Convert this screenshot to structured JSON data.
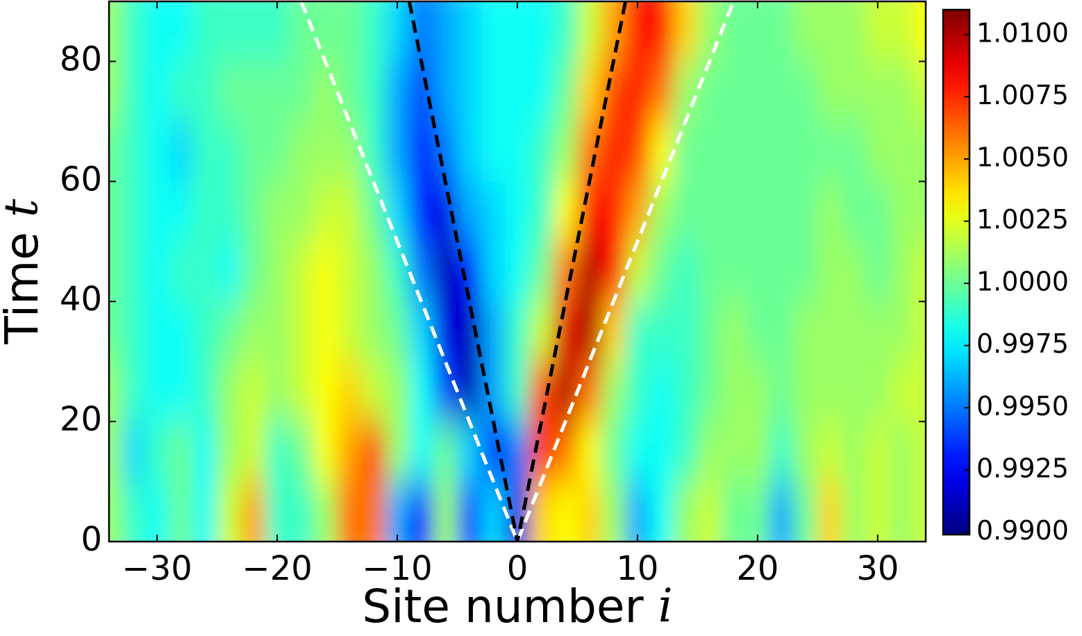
{
  "chart_data": {
    "type": "heatmap",
    "xlabel": {
      "text": "Site number",
      "symbol": "i"
    },
    "ylabel": {
      "text": "Time",
      "symbol": "t"
    },
    "colormap": "jet",
    "x": [
      -34,
      -32,
      -30,
      -28,
      -26,
      -24,
      -22,
      -20,
      -18,
      -16,
      -14,
      -12,
      -10,
      -8,
      -6,
      -4,
      -2,
      0,
      2,
      4,
      6,
      8,
      10,
      12,
      14,
      16,
      18,
      20,
      22,
      24,
      26,
      28,
      30,
      32,
      34
    ],
    "y": [
      5,
      15,
      25,
      35,
      45,
      55,
      65,
      75,
      85
    ],
    "values": [
      [
        1.001,
        0.999,
        0.998,
        1.0,
        0.998,
        1.002,
        1.005,
        0.999,
        0.999,
        1.001,
        1.006,
        1.006,
        0.996,
        0.993,
        1.001,
        0.994,
        0.997,
        0.992,
        1.004,
        1.003,
        1.004,
        1.001,
        0.996,
        0.998,
        1.001,
        1.002,
        1.0,
        1.0,
        0.996,
        1.0,
        1.004,
        1.001,
        1.002,
        1.001,
        1.002
      ],
      [
        1.001,
        0.997,
        0.999,
        1.0,
        0.998,
        1.001,
        1.002,
        0.999,
        1.0,
        1.003,
        1.005,
        1.007,
        1.001,
        0.998,
        1.0,
        0.997,
        0.993,
        0.995,
        1.008,
        1.006,
        1.003,
        1.0,
        0.998,
        0.998,
        0.999,
        1.001,
        1.001,
        1.001,
        0.999,
        1.001,
        1.002,
        1.001,
        1.002,
        1.001,
        1.002
      ],
      [
        1.001,
        0.999,
        0.998,
        0.998,
        0.999,
        1.001,
        1.002,
        1.001,
        1.002,
        1.003,
        1.004,
        1.002,
        1.001,
        0.998,
        0.994,
        0.991,
        0.996,
        0.999,
        1.007,
        1.01,
        1.006,
        1.001,
        0.999,
        0.998,
        0.999,
        1.0,
        1.001,
        1.001,
        1.0,
        1.001,
        1.001,
        1.001,
        1.001,
        1.002,
        1.002
      ],
      [
        1.0,
        0.999,
        0.998,
        0.998,
        0.999,
        1.0,
        1.001,
        1.001,
        1.002,
        1.003,
        1.002,
        1.001,
        1.0,
        0.997,
        0.992,
        0.991,
        0.996,
        0.999,
        1.002,
        1.009,
        1.01,
        1.004,
        0.999,
        0.999,
        0.999,
        1.0,
        1.001,
        1.0,
        1.0,
        1.001,
        1.001,
        1.001,
        1.001,
        1.001,
        1.002
      ],
      [
        1.0,
        0.999,
        0.998,
        0.999,
        0.999,
        0.998,
        1.0,
        1.001,
        1.002,
        1.003,
        1.002,
        1.001,
        0.999,
        0.995,
        0.991,
        0.993,
        0.997,
        0.998,
        1.0,
        1.006,
        1.01,
        1.008,
        1.002,
        1.0,
        0.999,
        1.0,
        1.0,
        1.0,
        1.0,
        1.0,
        1.001,
        1.001,
        1.0,
        1.001,
        1.002
      ],
      [
        1.0,
        0.999,
        0.998,
        0.998,
        0.999,
        0.999,
        1.0,
        1.001,
        1.001,
        1.002,
        1.002,
        1.0,
        0.997,
        0.993,
        0.992,
        0.996,
        0.997,
        0.998,
        0.999,
        1.003,
        1.008,
        1.008,
        1.005,
        1.001,
        1.0,
        1.0,
        1.0,
        1.0,
        1.0,
        1.0,
        1.001,
        1.0,
        1.0,
        1.001,
        1.001
      ],
      [
        1.0,
        0.999,
        0.998,
        0.997,
        0.999,
        0.999,
        1.0,
        1.0,
        1.001,
        1.001,
        1.001,
        0.999,
        0.996,
        0.993,
        0.995,
        0.997,
        0.998,
        0.998,
        0.999,
        1.001,
        1.006,
        1.008,
        1.007,
        1.003,
        1.0,
        1.0,
        1.0,
        1.0,
        1.0,
        1.0,
        1.0,
        1.0,
        1.001,
        1.001,
        1.001
      ],
      [
        1.001,
        0.999,
        0.998,
        0.999,
        0.999,
        1.0,
        1.0,
        1.0,
        1.0,
        1.001,
        1.0,
        0.999,
        0.996,
        0.994,
        0.996,
        0.997,
        0.998,
        0.998,
        0.998,
        1.0,
        1.004,
        1.007,
        1.008,
        1.006,
        1.001,
        1.0,
        1.0,
        1.0,
        1.0,
        1.0,
        1.001,
        1.001,
        1.001,
        1.001,
        1.002
      ],
      [
        1.001,
        0.999,
        0.998,
        0.998,
        0.999,
        0.999,
        0.999,
        0.999,
        1.0,
        1.0,
        1.0,
        0.999,
        0.997,
        0.995,
        0.996,
        0.997,
        0.998,
        0.998,
        0.998,
        0.999,
        1.002,
        1.005,
        1.008,
        1.008,
        1.004,
        1.001,
        1.0,
        1.0,
        1.0,
        1.001,
        1.001,
        1.001,
        1.002,
        1.002,
        1.003
      ]
    ],
    "xlim": [
      -34,
      34
    ],
    "ylim": [
      0,
      90
    ],
    "xticks": [
      {
        "value": -30,
        "label": "−30"
      },
      {
        "value": -20,
        "label": "−20"
      },
      {
        "value": -10,
        "label": "−10"
      },
      0,
      10,
      20,
      30
    ],
    "yticks": [
      0,
      20,
      40,
      60,
      80
    ],
    "clim": [
      0.9899,
      1.011
    ],
    "cticks": [
      {
        "value": 0.99,
        "label": "0.9900"
      },
      {
        "value": 0.9925,
        "label": "0.9925"
      },
      {
        "value": 0.995,
        "label": "0.9950"
      },
      {
        "value": 0.9975,
        "label": "0.9975"
      },
      {
        "value": 1,
        "label": "1.0000"
      },
      {
        "value": 1.0025,
        "label": "1.0025"
      },
      {
        "value": 1.005,
        "label": "1.0050"
      },
      {
        "value": 1.0075,
        "label": "1.0075"
      },
      {
        "value": 1.01,
        "label": "1.0100"
      }
    ],
    "lines": [
      {
        "x": [
          -18,
          0,
          18
        ],
        "y": [
          90,
          0,
          90
        ],
        "color": "#ffffff",
        "dashed": true
      },
      {
        "x": [
          -9,
          0,
          9
        ],
        "y": [
          90,
          0,
          90
        ],
        "color": "#000000",
        "dashed": true
      }
    ]
  }
}
